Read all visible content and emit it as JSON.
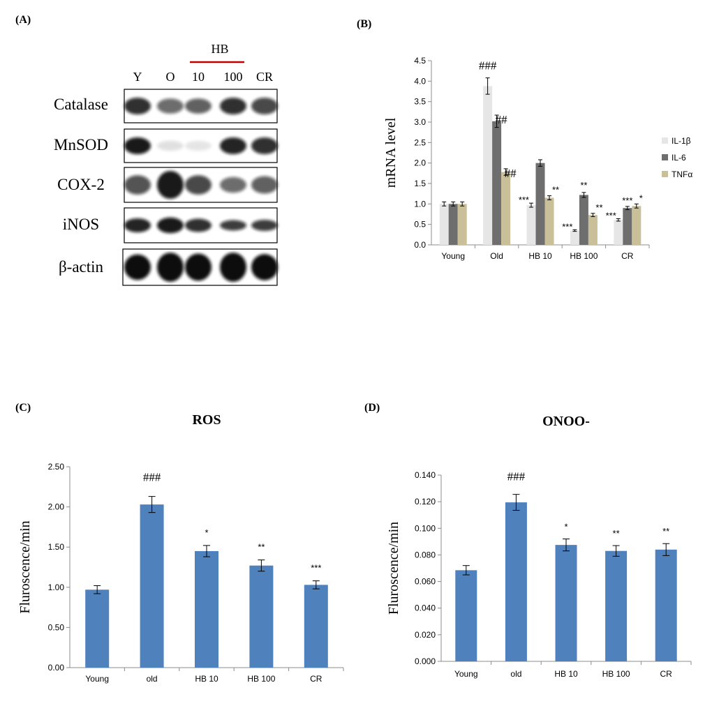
{
  "panels": {
    "A": {
      "label": "(A)",
      "bracket_label": "HB",
      "lanes": [
        "Y",
        "O",
        "10",
        "100",
        "CR"
      ],
      "rows": [
        {
          "name": "Catalase",
          "intensity": [
            0.85,
            0.6,
            0.65,
            0.85,
            0.75
          ],
          "thick": [
            0.5,
            0.45,
            0.45,
            0.5,
            0.5
          ]
        },
        {
          "name": "MnSOD",
          "intensity": [
            0.95,
            0.12,
            0.1,
            0.9,
            0.85
          ],
          "thick": [
            0.5,
            0.3,
            0.3,
            0.5,
            0.5
          ]
        },
        {
          "name": "COX-2",
          "intensity": [
            0.7,
            0.95,
            0.75,
            0.6,
            0.65
          ],
          "thick": [
            0.55,
            0.8,
            0.55,
            0.45,
            0.5
          ]
        },
        {
          "name": "iNOS",
          "intensity": [
            0.9,
            0.95,
            0.85,
            0.8,
            0.8
          ],
          "thick": [
            0.4,
            0.45,
            0.38,
            0.3,
            0.32
          ]
        },
        {
          "name": "β-actin",
          "intensity": [
            1.0,
            1.0,
            1.0,
            1.0,
            1.0
          ],
          "thick": [
            0.7,
            0.8,
            0.75,
            0.8,
            0.72
          ]
        }
      ]
    },
    "B": {
      "label": "(B)"
    },
    "C": {
      "label": "(C)"
    },
    "D": {
      "label": "(D)"
    }
  },
  "chart_data": [
    {
      "id": "B",
      "type": "bar",
      "title": "",
      "xlabel": "",
      "ylabel": "mRNA level",
      "categories": [
        "Young",
        "Old",
        "HB 10",
        "HB 100",
        "CR"
      ],
      "ylim": [
        0,
        4.5
      ],
      "yticks": [
        "0.0",
        "0.5",
        "1.0",
        "1.5",
        "2.0",
        "2.5",
        "3.0",
        "3.5",
        "4.0",
        "4.5"
      ],
      "legend_position": "right",
      "series": [
        {
          "name": "IL-1β",
          "color": "#e6e6e6",
          "values": [
            1.0,
            3.88,
            0.97,
            0.35,
            0.61
          ],
          "errors": [
            0.05,
            0.2,
            0.05,
            0.02,
            0.03
          ],
          "annotations": [
            "",
            "###",
            "***",
            "***",
            "***"
          ]
        },
        {
          "name": "IL-6",
          "color": "#6e6e6e",
          "values": [
            1.0,
            3.02,
            2.0,
            1.22,
            0.9
          ],
          "errors": [
            0.05,
            0.15,
            0.08,
            0.06,
            0.04
          ],
          "annotations": [
            "",
            "##",
            "",
            "**",
            "***"
          ]
        },
        {
          "name": "TNFα",
          "color": "#c9bf98",
          "values": [
            1.0,
            1.78,
            1.15,
            0.73,
            0.95
          ],
          "errors": [
            0.05,
            0.08,
            0.05,
            0.04,
            0.05
          ],
          "annotations": [
            "",
            "##",
            "**",
            "**",
            "*"
          ]
        }
      ]
    },
    {
      "id": "C",
      "type": "bar",
      "title": "ROS",
      "xlabel": "",
      "ylabel": "Fluroscence/min",
      "categories": [
        "Young",
        "old",
        "HB 10",
        "HB 100",
        "CR"
      ],
      "ylim": [
        0,
        2.5
      ],
      "yticks": [
        "0.00",
        "0.50",
        "1.00",
        "1.50",
        "2.00",
        "2.50"
      ],
      "series": [
        {
          "name": "ROS",
          "color": "#4f81bd",
          "values": [
            0.97,
            2.03,
            1.45,
            1.27,
            1.03
          ],
          "errors": [
            0.05,
            0.1,
            0.07,
            0.07,
            0.05
          ],
          "annotations": [
            "",
            "###",
            "*",
            "**",
            "***"
          ]
        }
      ]
    },
    {
      "id": "D",
      "type": "bar",
      "title": "ONOO-",
      "xlabel": "",
      "ylabel": "Fluroscence/min",
      "categories": [
        "Young",
        "old",
        "HB 10",
        "HB 100",
        "CR"
      ],
      "ylim": [
        0,
        0.14
      ],
      "yticks": [
        "0.000",
        "0.020",
        "0.040",
        "0.060",
        "0.080",
        "0.100",
        "0.120",
        "0.140"
      ],
      "series": [
        {
          "name": "ONOO-",
          "color": "#4f81bd",
          "values": [
            0.0685,
            0.1195,
            0.0875,
            0.083,
            0.084
          ],
          "errors": [
            0.0035,
            0.006,
            0.0045,
            0.004,
            0.0045
          ],
          "annotations": [
            "",
            "###",
            "*",
            "**",
            "**"
          ]
        }
      ]
    }
  ]
}
